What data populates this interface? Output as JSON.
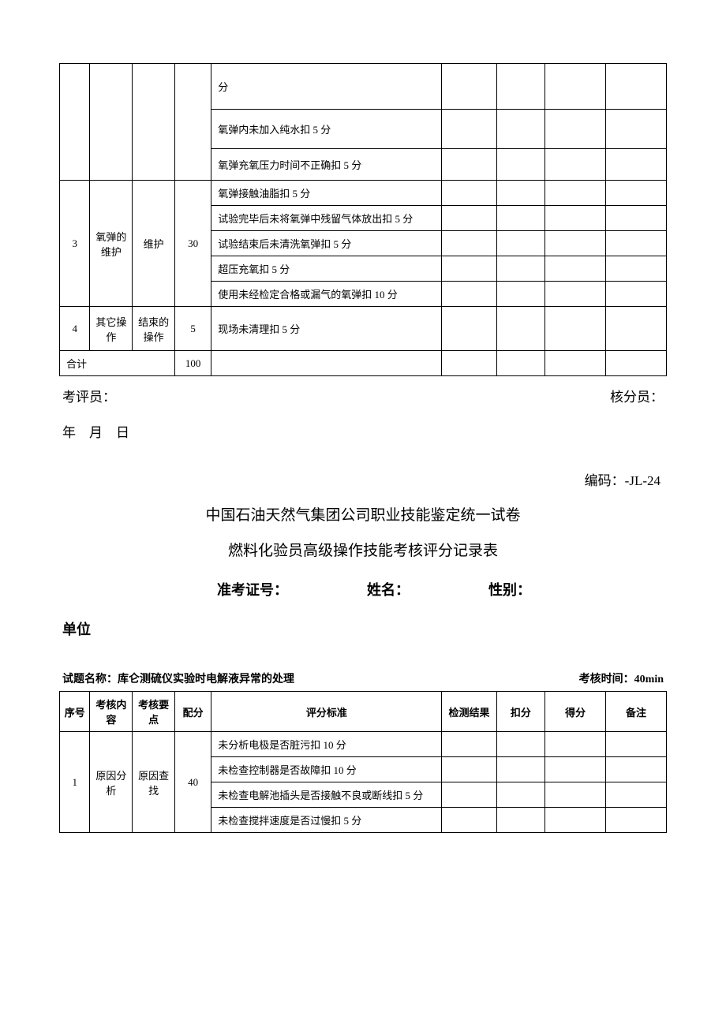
{
  "table1": {
    "rows": [
      {
        "seq": "",
        "content": "",
        "point": "",
        "score": "",
        "standards": [
          "分",
          "氧弹内未加入纯水扣 5 分",
          "氧弹充氧压力时间不正确扣 5 分"
        ]
      },
      {
        "seq": "3",
        "content": "氧弹的维护",
        "point": "维护",
        "score": "30",
        "standards": [
          "氧弹接触油脂扣 5 分",
          "试验完毕后未将氧弹中残留气体放出扣 5 分",
          "试验结束后未清洗氧弹扣 5 分",
          "超压充氧扣 5 分",
          "使用未经检定合格或漏气的氧弹扣 10 分"
        ]
      },
      {
        "seq": "4",
        "content": "其它操作",
        "point": "结束的操作",
        "score": "5",
        "standards": [
          "现场未清理扣 5 分"
        ]
      }
    ],
    "total_label": "合计",
    "total_score": "100"
  },
  "footer": {
    "examiner": "考评员：",
    "scorer": "核分员：",
    "date": "年　月　日"
  },
  "code_label": "编码：-JL-24",
  "title": "中国石油天然气集团公司职业技能鉴定统一试卷",
  "subtitle": "燃料化验员高级操作技能考核评分记录表",
  "info": {
    "exam_no": "准考证号：",
    "name": "姓名：",
    "gender": "性别：",
    "unit": "单位"
  },
  "test": {
    "name_label": "试题名称：库仑测硫仪实验时电解液异常的处理",
    "time_label": "考核时间：40min"
  },
  "table2": {
    "headers": {
      "seq": "序号",
      "content": "考核内容",
      "point": "考核要点",
      "score": "配分",
      "standard": "评分标准",
      "result": "检测结果",
      "deduct": "扣分",
      "get": "得分",
      "remark": "备注"
    },
    "rows": [
      {
        "seq": "1",
        "content": "原因分析",
        "point": "原因查找",
        "score": "40",
        "standards": [
          "未分析电极是否脏污扣 10 分",
          "未检查控制器是否故障扣 10 分",
          "未检查电解池插头是否接触不良或断线扣 5 分",
          "未检查搅拌速度是否过慢扣 5 分"
        ]
      }
    ]
  }
}
